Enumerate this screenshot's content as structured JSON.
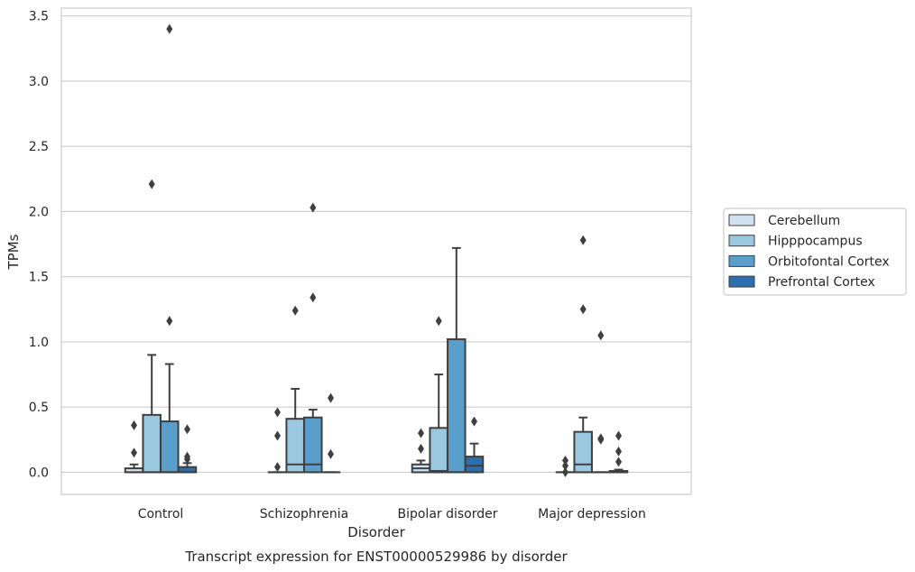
{
  "chart_data": {
    "type": "box",
    "title": "",
    "caption": "Transcript expression for ENST00000529986 by disorder",
    "xlabel": "Disorder",
    "ylabel": "TPMs",
    "ylim": [
      -0.17,
      3.56
    ],
    "yticks": [
      0.0,
      0.5,
      1.0,
      1.5,
      2.0,
      2.5,
      3.0,
      3.5
    ],
    "ytick_labels": [
      "0.0",
      "0.5",
      "1.0",
      "1.5",
      "2.0",
      "2.5",
      "3.0",
      "3.5"
    ],
    "grid": "horizontal",
    "legend_position": "right",
    "categories": [
      "Control",
      "Schizophrenia",
      "Bipolar disorder",
      "Major depression"
    ],
    "series": [
      {
        "name": "Cerebellum",
        "color": "#d0e2f2",
        "boxes": [
          {
            "q1": 0.0,
            "median": 0.0,
            "q3": 0.03,
            "wlow": 0.0,
            "whigh": 0.06,
            "outliers": [
              0.15,
              0.36
            ]
          },
          {
            "q1": 0.0,
            "median": 0.0,
            "q3": 0.0,
            "wlow": 0.0,
            "whigh": 0.0,
            "outliers": [
              0.04,
              0.28,
              0.46
            ]
          },
          {
            "q1": 0.0,
            "median": 0.03,
            "q3": 0.06,
            "wlow": 0.0,
            "whigh": 0.09,
            "outliers": [
              0.18,
              0.3
            ]
          },
          {
            "q1": 0.0,
            "median": 0.0,
            "q3": 0.0,
            "wlow": 0.0,
            "whigh": 0.0,
            "outliers": [
              0.0,
              0.05,
              0.09
            ]
          }
        ]
      },
      {
        "name": "Hipppocampus",
        "color": "#9ac8e0",
        "boxes": [
          {
            "q1": 0.0,
            "median": 0.0,
            "q3": 0.44,
            "wlow": 0.0,
            "whigh": 0.9,
            "outliers": [
              2.21
            ]
          },
          {
            "q1": 0.0,
            "median": 0.06,
            "q3": 0.41,
            "wlow": 0.0,
            "whigh": 0.64,
            "outliers": [
              1.24
            ]
          },
          {
            "q1": 0.0,
            "median": 0.01,
            "q3": 0.34,
            "wlow": 0.0,
            "whigh": 0.75,
            "outliers": [
              1.16
            ]
          },
          {
            "q1": 0.0,
            "median": 0.06,
            "q3": 0.31,
            "wlow": 0.0,
            "whigh": 0.42,
            "outliers": [
              1.25,
              1.78
            ]
          }
        ]
      },
      {
        "name": "Orbitofontal Cortex",
        "color": "#5a9ecc",
        "boxes": [
          {
            "q1": 0.0,
            "median": 0.0,
            "q3": 0.39,
            "wlow": 0.0,
            "whigh": 0.83,
            "outliers": [
              1.16,
              3.4
            ]
          },
          {
            "q1": 0.0,
            "median": 0.06,
            "q3": 0.42,
            "wlow": 0.0,
            "whigh": 0.48,
            "outliers": [
              1.34,
              2.03
            ]
          },
          {
            "q1": 0.0,
            "median": 0.0,
            "q3": 1.02,
            "wlow": 0.0,
            "whigh": 1.72,
            "outliers": []
          },
          {
            "q1": 0.0,
            "median": 0.0,
            "q3": 0.0,
            "wlow": 0.0,
            "whigh": 0.0,
            "outliers": [
              0.25,
              0.26,
              1.05
            ]
          }
        ]
      },
      {
        "name": "Prefrontal Cortex",
        "color": "#2d6eae",
        "boxes": [
          {
            "q1": 0.0,
            "median": 0.0,
            "q3": 0.04,
            "wlow": 0.0,
            "whigh": 0.07,
            "outliers": [
              0.1,
              0.12,
              0.33
            ]
          },
          {
            "q1": 0.0,
            "median": 0.0,
            "q3": 0.0,
            "wlow": 0.0,
            "whigh": 0.0,
            "outliers": [
              0.14,
              0.57
            ]
          },
          {
            "q1": 0.0,
            "median": 0.05,
            "q3": 0.12,
            "wlow": 0.0,
            "whigh": 0.22,
            "outliers": [
              0.39
            ]
          },
          {
            "q1": 0.0,
            "median": 0.0,
            "q3": 0.01,
            "wlow": 0.0,
            "whigh": 0.02,
            "outliers": [
              0.08,
              0.16,
              0.28
            ]
          }
        ]
      }
    ]
  }
}
